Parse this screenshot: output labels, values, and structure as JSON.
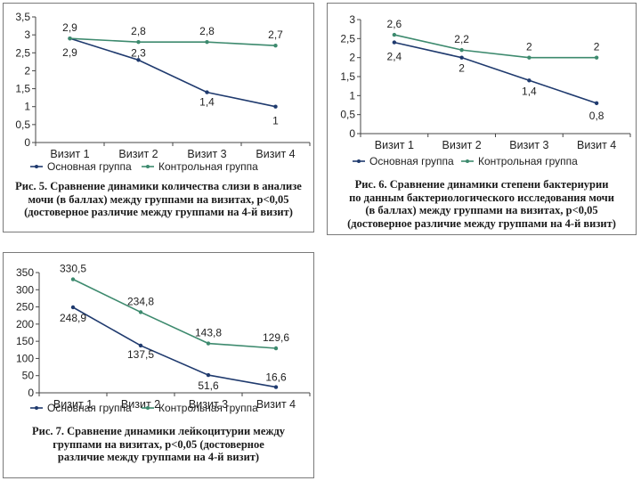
{
  "chart_data": [
    {
      "type": "line",
      "title": "Рис. 5. Сравнение динамики  количества слизи в анализе мочи (в баллах) между группами на визитах, р<0,05 (достоверное различие между группами на 4-й визит)",
      "caption_lines": [
        "Рис. 5. Сравнение динамики  количества слизи в анализе",
        "мочи (в баллах) между группами на визитах, р<0,05",
        "(достоверное различие между группами на 4-й визит)"
      ],
      "categories": [
        "Визит 1",
        "Визит 2",
        "Визит 3",
        "Визит 4"
      ],
      "ylim": [
        0,
        3.5
      ],
      "yticks": [
        0,
        0.5,
        1,
        1.5,
        2,
        2.5,
        3,
        3.5
      ],
      "ytick_labels": [
        "0",
        "0,5",
        "1",
        "1,5",
        "2",
        "2,5",
        "3",
        "3,5"
      ],
      "grid": false,
      "series": [
        {
          "name": "Основная группа",
          "color": "#1f3a6e",
          "values": [
            2.9,
            2.3,
            1.4,
            1.0
          ],
          "labels": [
            "2,9",
            "2,3",
            "1,4",
            "1"
          ]
        },
        {
          "name": "Контрольная группа",
          "color": "#3d8a6e",
          "values": [
            2.9,
            2.8,
            2.8,
            2.7
          ],
          "labels": [
            "2,9",
            "2,8",
            "2,8",
            "2,7"
          ]
        }
      ],
      "legend": "bottom"
    },
    {
      "type": "line",
      "title": "Рис. 6. Сравнение динамики степени бактериурии по данным бактериологического исследования мочи (в баллах) между группами на визитах, р<0,05 (достоверное различие между группами на 4-й визит)",
      "caption_lines": [
        "Рис. 6. Сравнение динамики степени бактериурии",
        "по данным бактериологического исследования мочи",
        "(в баллах) между группами на визитах, р<0,05",
        "(достоверное различие между группами на 4-й визит)"
      ],
      "categories": [
        "Визит 1",
        "Визит 2",
        "Визит 3",
        "Визит 4"
      ],
      "ylim": [
        0,
        3
      ],
      "yticks": [
        0,
        0.5,
        1,
        1.5,
        2,
        2.5,
        3
      ],
      "ytick_labels": [
        "0",
        "0,5",
        "1",
        "1,5",
        "2",
        "2,5",
        "3"
      ],
      "grid": false,
      "series": [
        {
          "name": "Основная группа",
          "color": "#1f3a6e",
          "values": [
            2.4,
            2.0,
            1.4,
            0.8
          ],
          "labels": [
            "2,4",
            "2",
            "1,4",
            "0,8"
          ]
        },
        {
          "name": "Контрольная группа",
          "color": "#3d8a6e",
          "values": [
            2.6,
            2.2,
            2.0,
            2.0
          ],
          "labels": [
            "2,6",
            "2,2",
            "2",
            "2"
          ]
        }
      ],
      "legend": "bottom"
    },
    {
      "type": "line",
      "title": "Рис. 7. Сравнение динамики лейкоцитурии между группами на визитах, р<0,05 (достоверное различие между группами на 4-й визит)",
      "caption_lines": [
        "Рис. 7. Сравнение динамики лейкоцитурии между",
        "группами на визитах, р<0,05 (достоверное",
        "различие между группами на 4-й визит)"
      ],
      "categories": [
        "Визит 1",
        "Визит 2",
        "Визит 3",
        "Визит 4"
      ],
      "ylim": [
        0,
        350
      ],
      "yticks": [
        0,
        50,
        100,
        150,
        200,
        250,
        300,
        350
      ],
      "ytick_labels": [
        "0",
        "50",
        "100",
        "150",
        "200",
        "250",
        "300",
        "350"
      ],
      "grid": false,
      "series": [
        {
          "name": "Основная группа",
          "color": "#1f3a6e",
          "values": [
            248.9,
            137.5,
            51.6,
            16.6
          ],
          "labels": [
            "248,9",
            "137,5",
            "51,6",
            "16,6"
          ]
        },
        {
          "name": "Контрольная группа",
          "color": "#3d8a6e",
          "values": [
            330.5,
            234.8,
            143.8,
            129.6
          ],
          "labels": [
            "330,5",
            "234,8",
            "143,8",
            "129,6"
          ]
        }
      ],
      "legend": "bottom"
    }
  ]
}
